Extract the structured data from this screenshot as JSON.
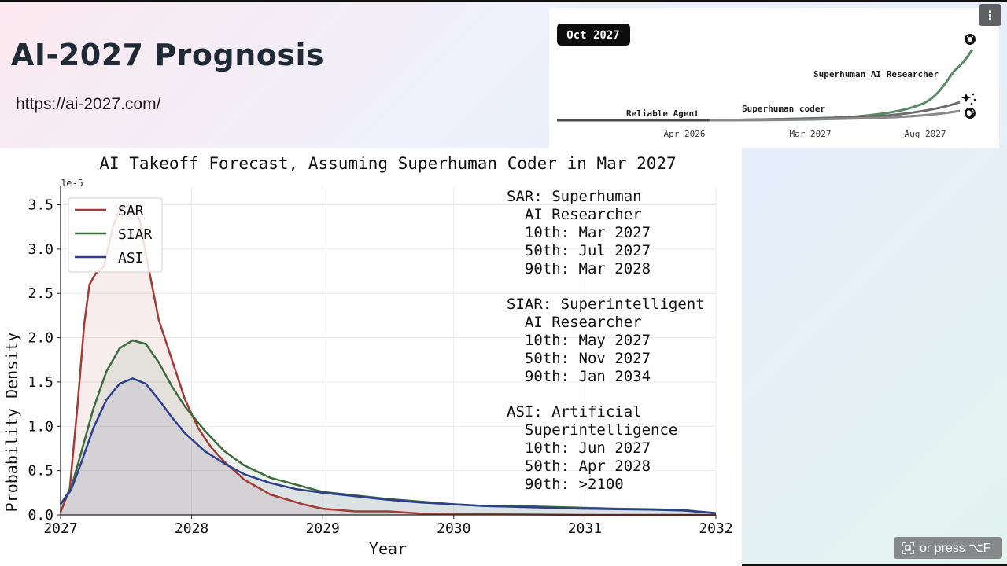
{
  "slide": {
    "title": "AI-2027 Prognosis",
    "link": "https://ai-2027.com/"
  },
  "overlay": {
    "menu_icon": "vertical-ellipsis-icon",
    "hint_icon": "fullscreen-icon",
    "hint_text": "or press ⌥F"
  },
  "timeline": {
    "date_badge": "Oct 2027",
    "labels": {
      "reliable_agent": "Reliable Agent",
      "superhuman_coder": "Superhuman coder",
      "superhuman_ai_researcher": "Superhuman AI Researcher"
    },
    "ticks": [
      "Apr 2026",
      "Mar 2027",
      "Aug 2027"
    ],
    "icons": [
      "openai-logo-icon",
      "sparkle-icon",
      "globe-icon"
    ]
  },
  "chart_data": {
    "type": "area",
    "title": "AI Takeoff Forecast, Assuming Superhuman Coder in Mar 2027",
    "xlabel": "Year",
    "ylabel": "Probability Density",
    "y_scale_label": "1e-5",
    "xlim": [
      2027,
      2032
    ],
    "ylim": [
      0,
      3.7
    ],
    "xticks": [
      "2027",
      "2028",
      "2029",
      "2030",
      "2031",
      "2032"
    ],
    "yticks": [
      "0.0",
      "0.5",
      "1.0",
      "1.5",
      "2.0",
      "2.5",
      "3.0",
      "3.5"
    ],
    "grid": true,
    "legend_position": "top-left",
    "series": [
      {
        "name": "SAR",
        "color": "#a23a35",
        "points": [
          [
            2027.0,
            0.03
          ],
          [
            2027.07,
            0.3
          ],
          [
            2027.13,
            1.25
          ],
          [
            2027.18,
            2.15
          ],
          [
            2027.22,
            2.6
          ],
          [
            2027.27,
            2.73
          ],
          [
            2027.33,
            2.8
          ],
          [
            2027.4,
            3.25
          ],
          [
            2027.45,
            3.45
          ],
          [
            2027.52,
            3.49
          ],
          [
            2027.6,
            3.35
          ],
          [
            2027.67,
            2.8
          ],
          [
            2027.75,
            2.2
          ],
          [
            2027.85,
            1.75
          ],
          [
            2027.95,
            1.3
          ],
          [
            2028.05,
            0.98
          ],
          [
            2028.15,
            0.76
          ],
          [
            2028.25,
            0.6
          ],
          [
            2028.4,
            0.4
          ],
          [
            2028.6,
            0.23
          ],
          [
            2028.85,
            0.12
          ],
          [
            2029.0,
            0.07
          ],
          [
            2029.25,
            0.04
          ],
          [
            2029.5,
            0.04
          ],
          [
            2029.75,
            0.015
          ],
          [
            2030.0,
            0.01
          ],
          [
            2030.5,
            0.005
          ],
          [
            2031.0,
            0.0
          ],
          [
            2032.0,
            0.0
          ]
        ]
      },
      {
        "name": "SIAR",
        "color": "#3c6b3c",
        "points": [
          [
            2027.0,
            0.12
          ],
          [
            2027.08,
            0.3
          ],
          [
            2027.16,
            0.72
          ],
          [
            2027.25,
            1.2
          ],
          [
            2027.35,
            1.62
          ],
          [
            2027.45,
            1.88
          ],
          [
            2027.55,
            1.97
          ],
          [
            2027.65,
            1.93
          ],
          [
            2027.75,
            1.72
          ],
          [
            2027.85,
            1.45
          ],
          [
            2027.95,
            1.22
          ],
          [
            2028.1,
            0.95
          ],
          [
            2028.25,
            0.72
          ],
          [
            2028.4,
            0.56
          ],
          [
            2028.6,
            0.42
          ],
          [
            2028.8,
            0.34
          ],
          [
            2029.0,
            0.26
          ],
          [
            2029.25,
            0.22
          ],
          [
            2029.5,
            0.18
          ],
          [
            2029.75,
            0.15
          ],
          [
            2030.0,
            0.12
          ],
          [
            2030.25,
            0.1
          ],
          [
            2030.5,
            0.1
          ],
          [
            2030.75,
            0.09
          ],
          [
            2031.0,
            0.08
          ],
          [
            2031.25,
            0.07
          ],
          [
            2031.5,
            0.065
          ],
          [
            2031.75,
            0.055
          ],
          [
            2032.0,
            0.02
          ]
        ]
      },
      {
        "name": "ASI",
        "color": "#2b3f8e",
        "points": [
          [
            2027.0,
            0.12
          ],
          [
            2027.08,
            0.28
          ],
          [
            2027.16,
            0.6
          ],
          [
            2027.25,
            0.98
          ],
          [
            2027.35,
            1.3
          ],
          [
            2027.45,
            1.48
          ],
          [
            2027.55,
            1.54
          ],
          [
            2027.65,
            1.48
          ],
          [
            2027.75,
            1.3
          ],
          [
            2027.85,
            1.1
          ],
          [
            2027.95,
            0.92
          ],
          [
            2028.1,
            0.72
          ],
          [
            2028.25,
            0.58
          ],
          [
            2028.4,
            0.46
          ],
          [
            2028.6,
            0.36
          ],
          [
            2028.8,
            0.29
          ],
          [
            2029.0,
            0.25
          ],
          [
            2029.25,
            0.21
          ],
          [
            2029.5,
            0.17
          ],
          [
            2029.75,
            0.14
          ],
          [
            2030.0,
            0.12
          ],
          [
            2030.25,
            0.1
          ],
          [
            2030.5,
            0.09
          ],
          [
            2030.75,
            0.08
          ],
          [
            2031.0,
            0.07
          ],
          [
            2031.25,
            0.065
          ],
          [
            2031.5,
            0.06
          ],
          [
            2031.75,
            0.05
          ],
          [
            2032.0,
            0.02
          ]
        ]
      }
    ],
    "annotation_blocks": [
      [
        "SAR: Superhuman",
        "  AI Researcher",
        "  10th: Mar 2027",
        "  50th: Jul 2027",
        "  90th: Mar 2028"
      ],
      [
        "SIAR: Superintelligent",
        "  AI Researcher",
        "  10th: May 2027",
        "  50th: Nov 2027",
        "  90th: Jan 2034"
      ],
      [
        "ASI: Artificial",
        "  Superintelligence",
        "  10th: Jun 2027",
        "  50th: Apr 2028",
        "  90th: >2100"
      ]
    ]
  }
}
